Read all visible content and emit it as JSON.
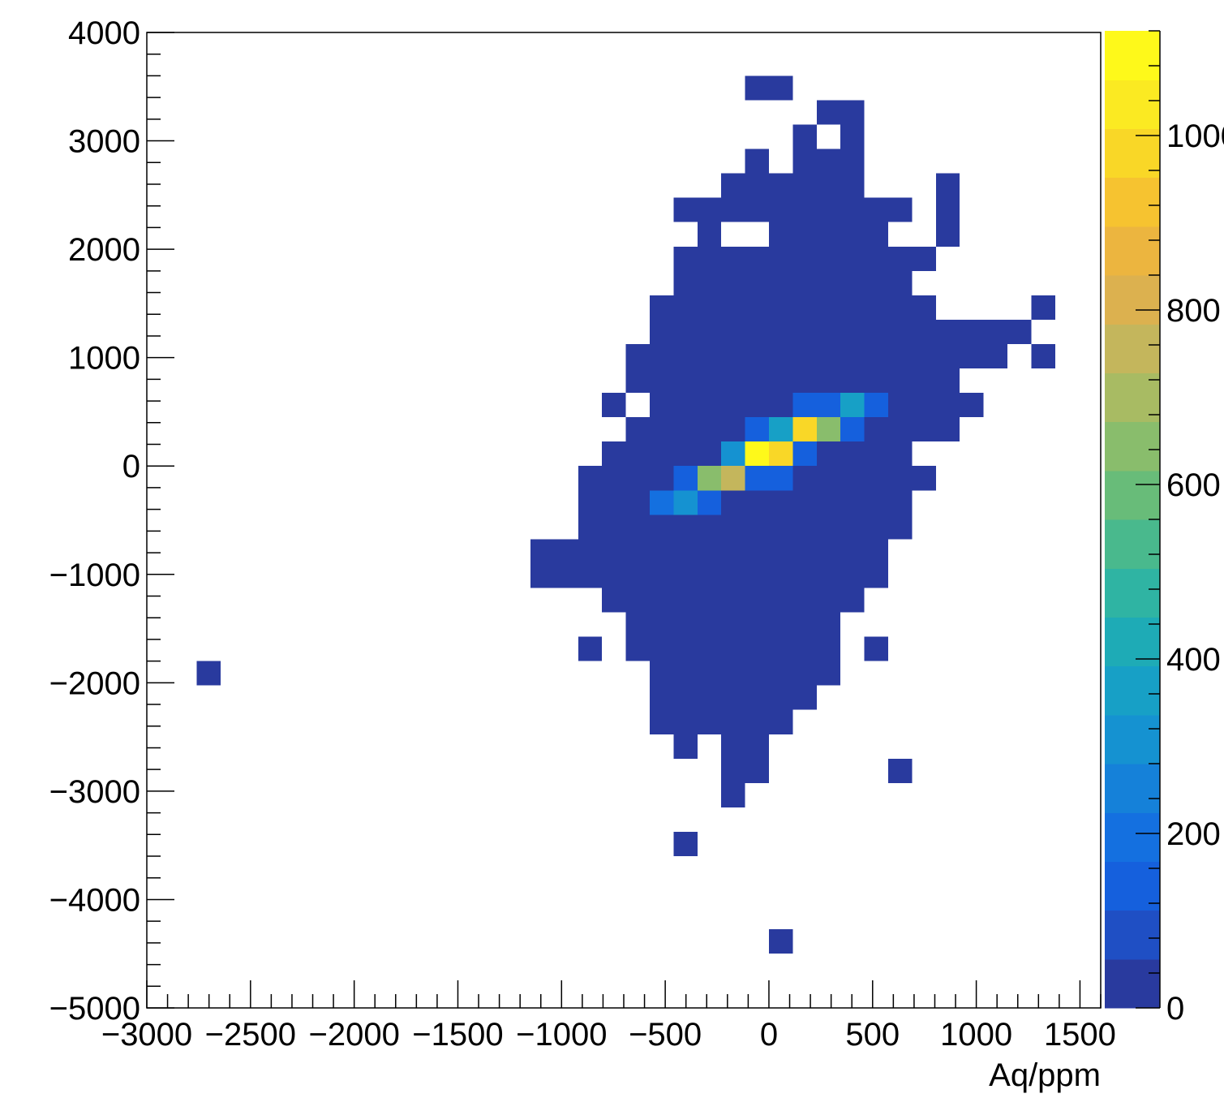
{
  "chart_data": {
    "type": "heatmap",
    "title": "",
    "xlabel": "Aq/ppm",
    "ylabel": "",
    "xlim": [
      -3000,
      1600
    ],
    "ylim": [
      -5000,
      4000
    ],
    "x_ticks": [
      "−3000",
      "−2500",
      "−2000",
      "−1500",
      "−1000",
      "−500",
      "0",
      "500",
      "1000",
      "1500"
    ],
    "x_tick_values": [
      -3000,
      -2500,
      -2000,
      -1500,
      -1000,
      -500,
      0,
      500,
      1000,
      1500
    ],
    "y_ticks": [
      "4000",
      "3000",
      "2000",
      "1000",
      "0",
      "−1000",
      "−2000",
      "−3000",
      "−4000",
      "−5000"
    ],
    "y_tick_values": [
      4000,
      3000,
      2000,
      1000,
      0,
      -1000,
      -2000,
      -3000,
      -4000,
      -5000
    ],
    "colorbar": {
      "min": 0,
      "max": 1120,
      "labels": [
        "0",
        "200",
        "400",
        "600",
        "800",
        "1000"
      ],
      "label_values": [
        0,
        200,
        400,
        600,
        800,
        1000
      ],
      "palette": [
        "#293a9e",
        "#1f4fc4",
        "#1560dd",
        "#1470e0",
        "#1581d9",
        "#1592d1",
        "#17a0c6",
        "#1eabb6",
        "#2fb4a3",
        "#49b98d",
        "#68bc79",
        "#89bd6c",
        "#a8bb63",
        "#c4b65c",
        "#dcb14f",
        "#ecb53f",
        "#f6c330",
        "#f9d727",
        "#fbea22",
        "#fef91a"
      ]
    },
    "bin_width_x": 115,
    "bin_height_y": 225,
    "fill_color": "#293a9e",
    "filled_regions": [
      {
        "y": [
          3375,
          3600
        ],
        "x": [
          -115,
          115
        ]
      },
      {
        "y": [
          3150,
          3375
        ],
        "x": [
          230,
          460
        ]
      },
      {
        "y": [
          2925,
          3150
        ],
        "x": [
          115,
          230
        ]
      },
      {
        "y": [
          2925,
          3150
        ],
        "x": [
          345,
          460
        ]
      },
      {
        "y": [
          2700,
          2925
        ],
        "x": [
          -115,
          0
        ]
      },
      {
        "y": [
          2700,
          2925
        ],
        "x": [
          115,
          460
        ]
      },
      {
        "y": [
          2475,
          2700
        ],
        "x": [
          -230,
          460
        ]
      },
      {
        "y": [
          2475,
          2700
        ],
        "x": [
          805,
          920
        ]
      },
      {
        "y": [
          2250,
          2475
        ],
        "x": [
          -460,
          690
        ]
      },
      {
        "y": [
          2250,
          2475
        ],
        "x": [
          805,
          920
        ]
      },
      {
        "y": [
          2025,
          2250
        ],
        "x": [
          -345,
          -230
        ]
      },
      {
        "y": [
          2025,
          2250
        ],
        "x": [
          0,
          575
        ]
      },
      {
        "y": [
          2025,
          2250
        ],
        "x": [
          805,
          920
        ]
      },
      {
        "y": [
          1800,
          2025
        ],
        "x": [
          -460,
          805
        ]
      },
      {
        "y": [
          1575,
          1800
        ],
        "x": [
          -460,
          690
        ]
      },
      {
        "y": [
          1350,
          1575
        ],
        "x": [
          -575,
          805
        ]
      },
      {
        "y": [
          1350,
          1575
        ],
        "x": [
          1265,
          1380
        ]
      },
      {
        "y": [
          1125,
          1350
        ],
        "x": [
          -575,
          1265
        ]
      },
      {
        "y": [
          900,
          1125
        ],
        "x": [
          -690,
          1150
        ]
      },
      {
        "y": [
          900,
          1125
        ],
        "x": [
          1265,
          1380
        ]
      },
      {
        "y": [
          675,
          900
        ],
        "x": [
          -690,
          920
        ]
      },
      {
        "y": [
          450,
          675
        ],
        "x": [
          -805,
          -690
        ]
      },
      {
        "y": [
          450,
          675
        ],
        "x": [
          -575,
          1035
        ]
      },
      {
        "y": [
          225,
          450
        ],
        "x": [
          -690,
          920
        ]
      },
      {
        "y": [
          0,
          225
        ],
        "x": [
          -805,
          690
        ]
      },
      {
        "y": [
          -225,
          0
        ],
        "x": [
          -920,
          805
        ]
      },
      {
        "y": [
          -450,
          -225
        ],
        "x": [
          -920,
          690
        ]
      },
      {
        "y": [
          -675,
          -450
        ],
        "x": [
          -920,
          690
        ]
      },
      {
        "y": [
          -900,
          -675
        ],
        "x": [
          -1150,
          575
        ]
      },
      {
        "y": [
          -1125,
          -900
        ],
        "x": [
          -1150,
          575
        ]
      },
      {
        "y": [
          -1350,
          -1125
        ],
        "x": [
          -805,
          460
        ]
      },
      {
        "y": [
          -1575,
          -1350
        ],
        "x": [
          -690,
          345
        ]
      },
      {
        "y": [
          -1800,
          -1575
        ],
        "x": [
          -920,
          -805
        ]
      },
      {
        "y": [
          -1800,
          -1575
        ],
        "x": [
          -690,
          345
        ]
      },
      {
        "y": [
          -1800,
          -1575
        ],
        "x": [
          460,
          575
        ]
      },
      {
        "y": [
          -2025,
          -1800
        ],
        "x": [
          -575,
          345
        ]
      },
      {
        "y": [
          -2025,
          -1800
        ],
        "x": [
          -2760,
          -2645
        ]
      },
      {
        "y": [
          -2250,
          -2025
        ],
        "x": [
          -575,
          230
        ]
      },
      {
        "y": [
          -2475,
          -2250
        ],
        "x": [
          -575,
          115
        ]
      },
      {
        "y": [
          -2700,
          -2475
        ],
        "x": [
          -460,
          -345
        ]
      },
      {
        "y": [
          -2700,
          -2475
        ],
        "x": [
          -230,
          0
        ]
      },
      {
        "y": [
          -2925,
          -2700
        ],
        "x": [
          -230,
          0
        ]
      },
      {
        "y": [
          -2925,
          -2700
        ],
        "x": [
          575,
          690
        ]
      },
      {
        "y": [
          -3150,
          -2925
        ],
        "x": [
          -230,
          -115
        ]
      },
      {
        "y": [
          -3600,
          -3375
        ],
        "x": [
          -460,
          -345
        ]
      },
      {
        "y": [
          -4500,
          -4275
        ],
        "x": [
          0,
          115
        ]
      }
    ],
    "empty_regions": [
      {
        "y": [
          2925,
          3150
        ],
        "x": [
          230,
          345
        ]
      },
      {
        "y": [
          2025,
          2250
        ],
        "x": [
          -230,
          0
        ]
      },
      {
        "y": [
          450,
          675
        ],
        "x": [
          -690,
          -575
        ]
      }
    ],
    "hot_bins": [
      {
        "x": 115,
        "y": 450,
        "value": 120
      },
      {
        "x": 230,
        "y": 450,
        "value": 150
      },
      {
        "x": 345,
        "y": 450,
        "value": 380
      },
      {
        "x": 460,
        "y": 450,
        "value": 150
      },
      {
        "x": -115,
        "y": 225,
        "value": 120
      },
      {
        "x": 0,
        "y": 225,
        "value": 380
      },
      {
        "x": 115,
        "y": 225,
        "value": 960
      },
      {
        "x": 230,
        "y": 225,
        "value": 650
      },
      {
        "x": 345,
        "y": 225,
        "value": 120
      },
      {
        "x": -230,
        "y": 0,
        "value": 330
      },
      {
        "x": -115,
        "y": 0,
        "value": 1110
      },
      {
        "x": 0,
        "y": 0,
        "value": 1000
      },
      {
        "x": 115,
        "y": 0,
        "value": 150
      },
      {
        "x": -460,
        "y": -225,
        "value": 150
      },
      {
        "x": -345,
        "y": -225,
        "value": 650
      },
      {
        "x": -230,
        "y": -225,
        "value": 780
      },
      {
        "x": -115,
        "y": -225,
        "value": 150
      },
      {
        "x": 0,
        "y": -225,
        "value": 120
      },
      {
        "x": -575,
        "y": -450,
        "value": 170
      },
      {
        "x": -460,
        "y": -450,
        "value": 280
      },
      {
        "x": -345,
        "y": -450,
        "value": 120
      }
    ]
  }
}
